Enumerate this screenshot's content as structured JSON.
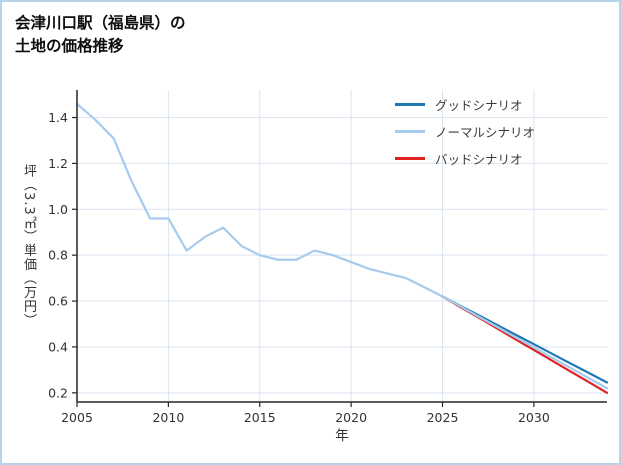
{
  "title_line1": "会津川口駅（福島県）の",
  "title_line2": "土地の価格推移",
  "chart_data": {
    "type": "line",
    "title": "会津川口駅（福島県）の土地の価格推移",
    "xlabel": "年",
    "ylabel": "坪（3.3㎡）単価（万円）",
    "xlim": [
      2005,
      2034
    ],
    "ylim": [
      0.16,
      1.52
    ],
    "xticks": [
      2005,
      2010,
      2015,
      2020,
      2025,
      2030
    ],
    "xtick_labels": [
      "2005",
      "2010",
      "2015",
      "2020",
      "2025",
      "2030"
    ],
    "yticks": [
      0.2,
      0.4,
      0.6,
      0.8,
      1.0,
      1.2,
      1.4
    ],
    "ytick_labels": [
      "0.2",
      "0.4",
      "0.6",
      "0.8",
      "1.0",
      "1.2",
      "1.4"
    ],
    "grid": true,
    "legend_position": "upper right",
    "colors": {
      "grid": "#dbe4f0",
      "axis": "#262626",
      "tick_label": "#333333",
      "border": "#b7d3ea"
    },
    "series": [
      {
        "name": "グッドシナリオ",
        "color": "#1f77b4",
        "x": [
          2025,
          2026,
          2027,
          2028,
          2029,
          2030,
          2031,
          2032,
          2033,
          2034
        ],
        "values": [
          0.62,
          0.578,
          0.537,
          0.495,
          0.453,
          0.412,
          0.37,
          0.328,
          0.287,
          0.245
        ]
      },
      {
        "name": "ノーマルシナリオ",
        "color": "#a6cbee",
        "x": [
          2005,
          2006,
          2007,
          2008,
          2009,
          2010,
          2011,
          2012,
          2013,
          2014,
          2015,
          2016,
          2017,
          2018,
          2019,
          2020,
          2021,
          2022,
          2023,
          2024,
          2025,
          2026,
          2027,
          2028,
          2029,
          2030,
          2031,
          2032,
          2033,
          2034
        ],
        "values": [
          1.46,
          1.39,
          1.31,
          1.12,
          0.96,
          0.96,
          0.82,
          0.88,
          0.92,
          0.84,
          0.8,
          0.78,
          0.78,
          0.82,
          0.8,
          0.77,
          0.74,
          0.72,
          0.7,
          0.66,
          0.62,
          0.576,
          0.531,
          0.487,
          0.442,
          0.398,
          0.353,
          0.309,
          0.264,
          0.22
        ]
      },
      {
        "name": "バッドシナリオ",
        "color": "#e02222",
        "x": [
          2025,
          2026,
          2027,
          2028,
          2029,
          2030,
          2031,
          2032,
          2033,
          2034
        ],
        "values": [
          0.62,
          0.573,
          0.527,
          0.48,
          0.433,
          0.387,
          0.34,
          0.293,
          0.247,
          0.2
        ]
      }
    ]
  }
}
